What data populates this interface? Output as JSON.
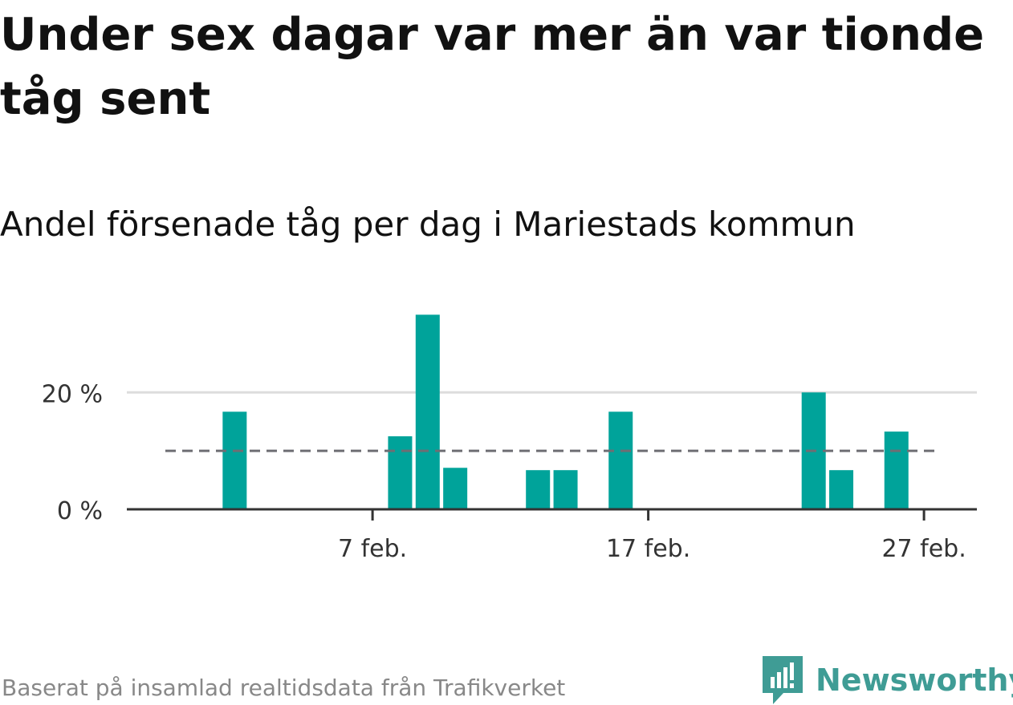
{
  "title": "Under sex dagar var mer än var tionde tåg sent",
  "subtitle": "Andel försenade tåg per dag i Mariestads kommun",
  "source": "Baserat på insamlad realtidsdata från Trafikverket",
  "brand": {
    "name": "Newsworthy",
    "logo": "newsworthy-logo-icon"
  },
  "colors": {
    "bar": "#00a39a",
    "reference_line": "#6e6e73",
    "grid": "#dddddd",
    "axis": "#333333",
    "tick_text": "#333333",
    "brand": "#3f9c95"
  },
  "chart_data": {
    "type": "bar",
    "x_unit": "date",
    "x": [
      "2/1",
      "2/2",
      "2/3",
      "2/4",
      "2/5",
      "2/6",
      "2/7",
      "2/8",
      "2/9",
      "2/10",
      "2/11",
      "2/12",
      "2/13",
      "2/14",
      "2/15",
      "2/16",
      "2/17",
      "2/18",
      "2/19",
      "2/20",
      "2/21",
      "2/22",
      "2/23",
      "2/24",
      "2/25",
      "2/26",
      "2/27",
      "2/28"
    ],
    "values": [
      0,
      16.7,
      0,
      0,
      0,
      0,
      0,
      12.5,
      33.3,
      7.1,
      0,
      0,
      6.7,
      6.7,
      0,
      16.7,
      0,
      0,
      0,
      0,
      0,
      0,
      20,
      6.7,
      0,
      13.3,
      0,
      0
    ],
    "reference_line": 10,
    "y_ticks": [
      0,
      20
    ],
    "y_tick_labels": [
      "0 %",
      "20 %"
    ],
    "x_ticks": [
      "2/7",
      "2/17",
      "2/27"
    ],
    "x_tick_labels": [
      "7 feb.",
      "17 feb.",
      "27 feb."
    ],
    "ylim": [
      0,
      35
    ],
    "grid": true,
    "legend": "none"
  }
}
